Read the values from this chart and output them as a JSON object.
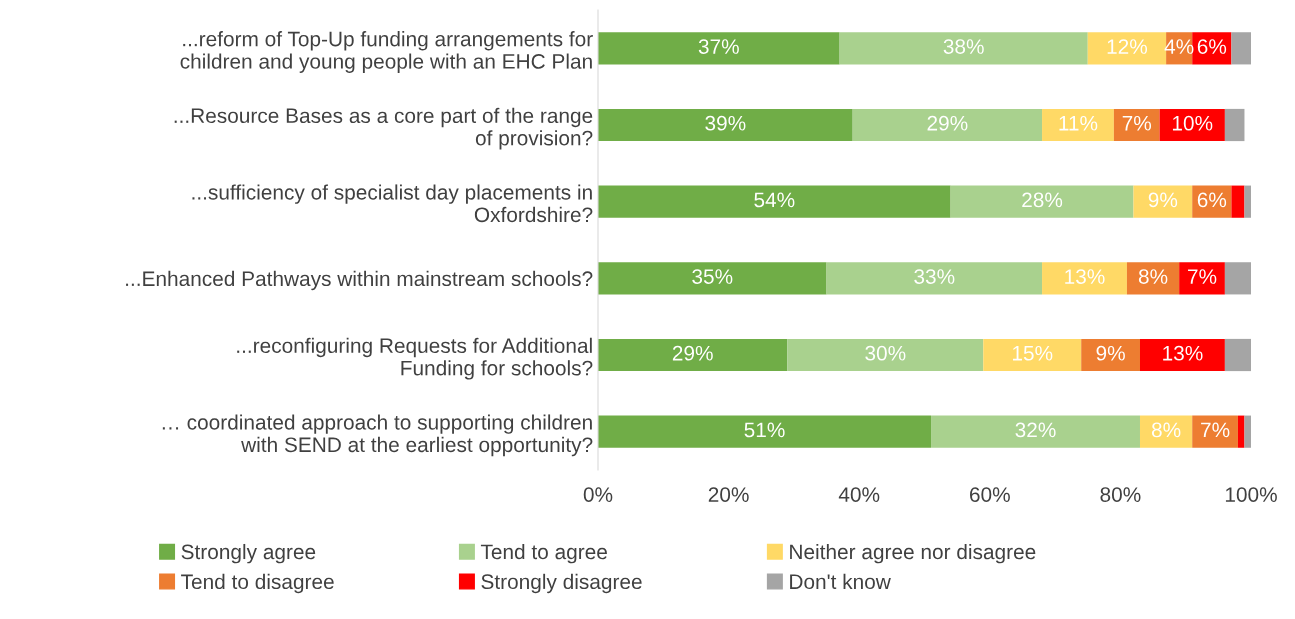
{
  "chart_data": {
    "type": "bar",
    "orientation": "horizontal",
    "stacked": true,
    "categories": [
      "...reform of Top-Up funding arrangements for children and young people with an EHC Plan",
      "...Resource Bases as a core part of the range of provision?",
      "...sufficiency of specialist day placements in Oxfordshire?",
      "...Enhanced Pathways within mainstream schools?",
      "...reconfiguring Requests for Additional Funding for schools?",
      "… coordinated approach to supporting children with SEND at the earliest opportunity?"
    ],
    "series": [
      {
        "name": "Strongly agree",
        "color": "#70ad47",
        "values": [
          37,
          39,
          54,
          35,
          29,
          51
        ],
        "value_labels": [
          "37%",
          "39%",
          "54%",
          "35%",
          "29%",
          "51%"
        ]
      },
      {
        "name": "Tend to agree",
        "color": "#a9d18e",
        "values": [
          38,
          29,
          28,
          33,
          30,
          32
        ],
        "value_labels": [
          "38%",
          "29%",
          "28%",
          "33%",
          "30%",
          "32%"
        ]
      },
      {
        "name": "Neither agree nor disagree",
        "color": "#ffd966",
        "values": [
          12,
          11,
          9,
          13,
          15,
          8
        ],
        "value_labels": [
          "12%",
          "11%",
          "9%",
          "13%",
          "15%",
          "8%"
        ]
      },
      {
        "name": "Tend to disagree",
        "color": "#ed7d31",
        "values": [
          4,
          7,
          6,
          8,
          9,
          7
        ],
        "value_labels": [
          "4%",
          "7%",
          "6%",
          "8%",
          "9%",
          "7%"
        ]
      },
      {
        "name": "Strongly disagree",
        "color": "#ff0000",
        "values": [
          6,
          10,
          2,
          7,
          13,
          1
        ],
        "value_labels": [
          "6%",
          "10%",
          null,
          "7%",
          "13%",
          null
        ]
      },
      {
        "name": "Don't know",
        "color": "#a5a5a5",
        "values": [
          3,
          3,
          1,
          4,
          4,
          1
        ],
        "value_labels": [
          null,
          null,
          null,
          null,
          null,
          null
        ]
      }
    ],
    "xlim": [
      0,
      100
    ],
    "xticks": [
      {
        "value": 0,
        "label": "0%"
      },
      {
        "value": 20,
        "label": "20%"
      },
      {
        "value": 40,
        "label": "40%"
      },
      {
        "value": 60,
        "label": "60%"
      },
      {
        "value": 80,
        "label": "80%"
      },
      {
        "value": 100,
        "label": "100%"
      }
    ],
    "grid": false,
    "legend": "bottom"
  }
}
